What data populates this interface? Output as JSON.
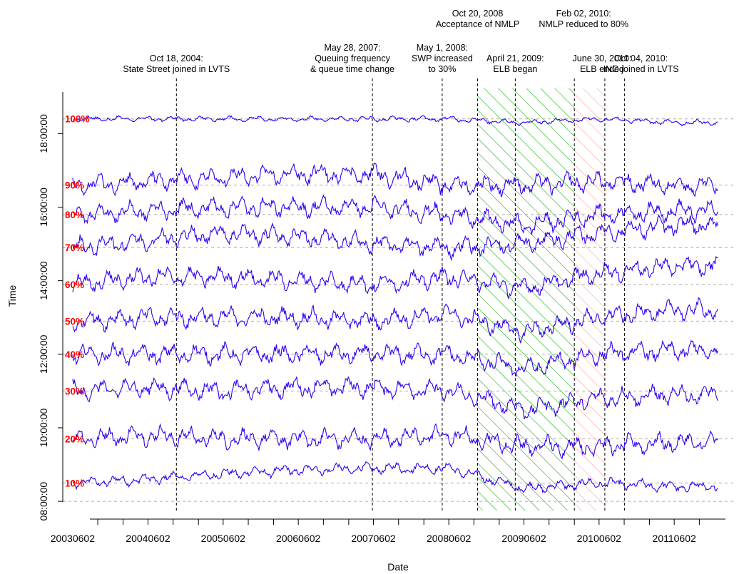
{
  "chart_data": {
    "type": "line",
    "xlabel": "Date",
    "ylabel": "Time",
    "x_unit": "date",
    "xlim": [
      "2003-04-15",
      "2012-03-15"
    ],
    "ylim_hours": [
      7.75,
      19.5
    ],
    "x_tick_labels": [
      {
        "date": "2003-06-02",
        "label": "20030602"
      },
      {
        "date": "2004-06-02",
        "label": "20040602"
      },
      {
        "date": "2005-06-02",
        "label": "20050602"
      },
      {
        "date": "2006-06-02",
        "label": "20060602"
      },
      {
        "date": "2007-06-02",
        "label": "20070602"
      },
      {
        "date": "2008-06-02",
        "label": "20080602"
      },
      {
        "date": "2009-06-02",
        "label": "20090602"
      },
      {
        "date": "2010-06-02",
        "label": "20100602"
      },
      {
        "date": "2011-06-02",
        "label": "20110602"
      }
    ],
    "y_tick_labels": [
      {
        "value": 8,
        "label": "08:00:00"
      },
      {
        "value": 10,
        "label": "10:00:00"
      },
      {
        "value": 12,
        "label": "12:00:00"
      },
      {
        "value": 14,
        "label": "14:00:00"
      },
      {
        "value": 16,
        "label": "16:00:00"
      },
      {
        "value": 18,
        "label": "18:00:00"
      }
    ],
    "grid": "horizontal dashed at each percentile baseline",
    "series_color": "#3300ee",
    "label_color": "#ff0000",
    "series": [
      {
        "name": "10%",
        "values": [
          8.5,
          8.6,
          8.75,
          8.85,
          8.9,
          8.9,
          8.35,
          8.5,
          8.4
        ]
      },
      {
        "name": "20%",
        "values": [
          9.7,
          9.8,
          9.7,
          9.7,
          9.7,
          9.8,
          9.5,
          9.5,
          9.6
        ]
      },
      {
        "name": "30%",
        "values": [
          11.0,
          11.1,
          11.0,
          11.1,
          11.1,
          11.0,
          10.5,
          10.8,
          10.9
        ]
      },
      {
        "name": "40%",
        "values": [
          12.0,
          12.0,
          12.0,
          12.0,
          12.0,
          12.0,
          11.6,
          12.0,
          12.1
        ]
      },
      {
        "name": "50%",
        "values": [
          12.9,
          13.0,
          13.0,
          13.0,
          12.9,
          13.1,
          12.6,
          13.0,
          13.2
        ]
      },
      {
        "name": "60%",
        "values": [
          13.9,
          14.1,
          14.1,
          14.0,
          13.9,
          14.1,
          13.8,
          14.2,
          14.4
        ]
      },
      {
        "name": "70%",
        "values": [
          14.9,
          15.1,
          15.3,
          15.2,
          15.0,
          14.9,
          15.0,
          15.3,
          15.5
        ]
      },
      {
        "name": "80%",
        "values": [
          15.8,
          15.9,
          16.0,
          16.0,
          16.0,
          15.8,
          15.5,
          15.8,
          15.9
        ]
      },
      {
        "name": "90%",
        "values": [
          16.6,
          16.7,
          16.8,
          16.9,
          16.9,
          16.6,
          16.6,
          16.7,
          16.6
        ]
      },
      {
        "name": "100%",
        "values": [
          18.4,
          18.4,
          18.4,
          18.4,
          18.4,
          18.4,
          18.3,
          18.4,
          18.3
        ]
      }
    ],
    "series_dates": [
      "2003-06-02",
      "2004-06-02",
      "2005-06-02",
      "2006-06-02",
      "2007-06-02",
      "2008-06-02",
      "2009-06-02",
      "2010-06-02",
      "2011-06-02"
    ],
    "events": [
      {
        "date": "2004-10-18",
        "label": [
          "Oct 18, 2004:",
          "State Street joined in LVTS"
        ],
        "row": "low"
      },
      {
        "date": "2007-05-28",
        "label": [
          "May 28, 2007:",
          "Queuing frequency",
          "& queue time change"
        ],
        "row": "low"
      },
      {
        "date": "2008-05-01",
        "label": [
          "May 1, 2008:",
          "SWP increased",
          "to 30%"
        ],
        "row": "low"
      },
      {
        "date": "2008-10-20",
        "label": [
          "Oct 20, 2008",
          "Acceptance of NMLP"
        ],
        "row": "high"
      },
      {
        "date": "2009-04-21",
        "label": [
          "April 21, 2009:",
          "ELB began"
        ],
        "row": "low"
      },
      {
        "date": "2010-02-02",
        "label": [
          "Feb 02, 2010:",
          "NMLP reduced to 80%"
        ],
        "row": "high"
      },
      {
        "date": "2010-06-30",
        "label": [
          "June 30, 2010:",
          "ELB ended"
        ],
        "row": "low"
      },
      {
        "date": "2010-10-04",
        "label": [
          "Oct 04, 2010:",
          "ING joined in LVTS"
        ],
        "row": "low"
      }
    ],
    "shaded_periods": [
      {
        "start": "2008-10-20",
        "end": "2010-02-02",
        "color": "#00aa00"
      },
      {
        "start": "2010-02-02",
        "end": "2010-06-30",
        "color": "#ff9999"
      }
    ]
  }
}
